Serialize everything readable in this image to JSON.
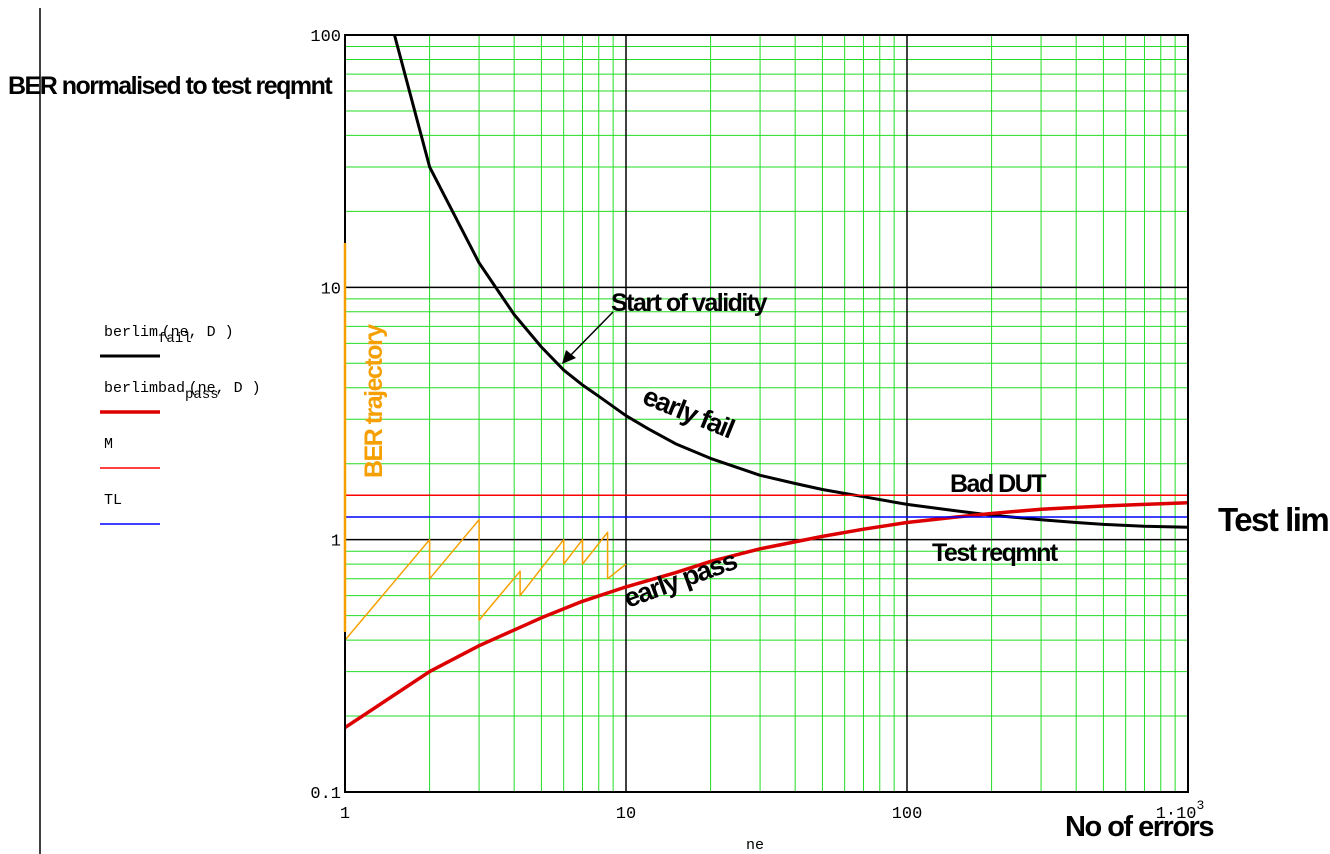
{
  "chart_data": {
    "type": "line",
    "x_scale": "log",
    "y_scale": "log",
    "xlim": [
      1,
      1000
    ],
    "ylim": [
      0.1,
      100
    ],
    "grid": true,
    "ylabel": "BER normalised to test reqmnt",
    "xlabel": "No of errors",
    "x_var": "ne",
    "x_ticks": [
      "1",
      "10",
      "100",
      "1·10³"
    ],
    "y_ticks": [
      "100",
      "10",
      "1",
      "0.1"
    ],
    "legend": [
      {
        "main": "berlim",
        "sub": "fail",
        "args": "(ne, D )",
        "color": "#000000"
      },
      {
        "main": "berlimbad",
        "sub": "pass",
        "args": "(ne, D )",
        "color": "#dd0000"
      },
      {
        "main": "M",
        "sub": "",
        "args": "",
        "color": "#ff0000"
      },
      {
        "main": "TL",
        "sub": "",
        "args": "",
        "color": "#0000ff"
      }
    ],
    "series": [
      {
        "key": "fail",
        "color": "#000000",
        "x": [
          1.5,
          2,
          3,
          4,
          5,
          6,
          7,
          8,
          10,
          12,
          15,
          20,
          30,
          40,
          50,
          70,
          100,
          150,
          200,
          300,
          400,
          500,
          700,
          1000
        ],
        "y": [
          100,
          30,
          12.5,
          7.8,
          5.8,
          4.7,
          4.1,
          3.7,
          3.1,
          2.75,
          2.4,
          2.1,
          1.8,
          1.67,
          1.58,
          1.48,
          1.38,
          1.3,
          1.25,
          1.2,
          1.17,
          1.15,
          1.13,
          1.12
        ]
      },
      {
        "key": "pass",
        "color": "#dd0000",
        "x": [
          1,
          2,
          3,
          5,
          7,
          10,
          15,
          20,
          30,
          50,
          70,
          100,
          150,
          200,
          300,
          500,
          700,
          1000
        ],
        "y": [
          0.18,
          0.3,
          0.38,
          0.49,
          0.57,
          0.65,
          0.74,
          0.82,
          0.92,
          1.03,
          1.1,
          1.17,
          1.23,
          1.27,
          1.32,
          1.36,
          1.38,
          1.4
        ]
      },
      {
        "key": "M",
        "color": "#ff0000",
        "x": [
          1,
          1000
        ],
        "y": [
          1.5,
          1.5
        ]
      },
      {
        "key": "TL",
        "color": "#0000ff",
        "x": [
          1,
          1000
        ],
        "y": [
          1.23,
          1.23
        ]
      },
      {
        "key": "trajectory",
        "color": "#f5a000",
        "x": [
          1,
          2,
          2,
          3,
          3,
          4.2,
          4.2,
          6,
          6,
          7,
          7,
          8.6,
          8.6,
          10
        ],
        "y": [
          0.4,
          1.0,
          0.7,
          1.2,
          0.48,
          0.75,
          0.6,
          1.0,
          0.8,
          1.0,
          0.8,
          1.07,
          0.7,
          0.8
        ]
      }
    ],
    "annotations": {
      "start_validity": "Start of validity",
      "early_fail": "early fail",
      "early_pass": "early pass",
      "bad_dut": "Bad DUT",
      "test_reqmnt": "Test reqmnt",
      "test_limit": "Test limit",
      "ber_trajectory": "BER trajectory"
    }
  }
}
